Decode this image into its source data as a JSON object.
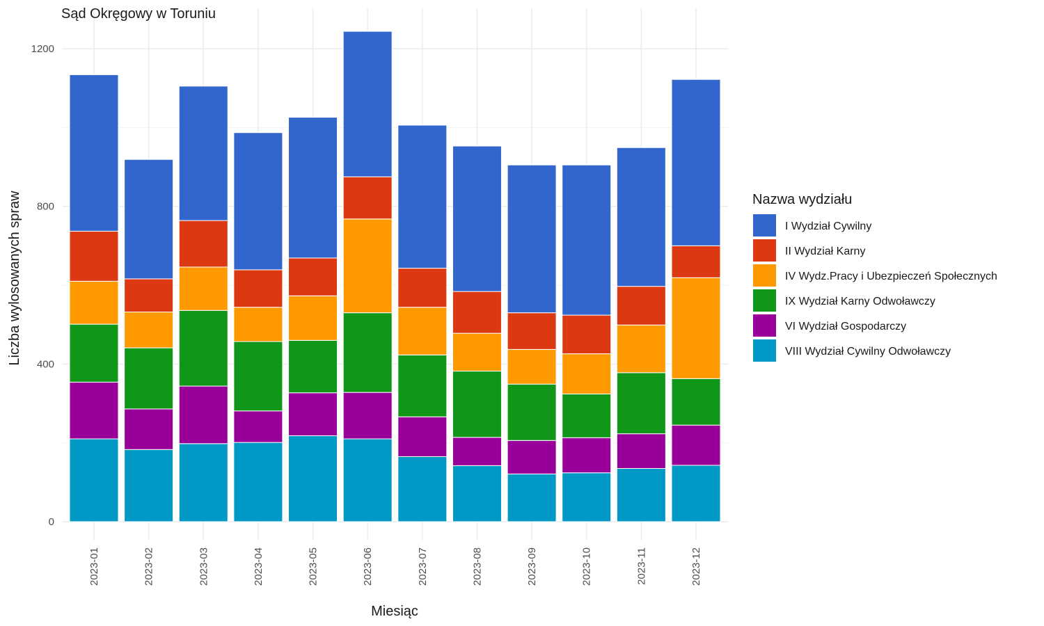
{
  "chart_data": {
    "type": "bar",
    "stacked": true,
    "title": "Sąd Okręgowy w Toruniu",
    "xlabel": "Miesiąc",
    "ylabel": "Liczba wylosowanych spraw",
    "ylim": [
      0,
      1260
    ],
    "yticks": [
      0,
      400,
      800,
      1200
    ],
    "grid": true,
    "legend_title": "Nazwa wydziału",
    "legend_position": "right",
    "categories": [
      "2023-01",
      "2023-02",
      "2023-03",
      "2023-04",
      "2023-05",
      "2023-06",
      "2023-07",
      "2023-08",
      "2023-09",
      "2023-10",
      "2023-11",
      "2023-12"
    ],
    "series": [
      {
        "name": "VIII Wydział Cywilny Odwoławczy",
        "color": "#0099c6",
        "values": [
          210,
          183,
          198,
          201,
          218,
          210,
          165,
          142,
          121,
          124,
          135,
          143
        ]
      },
      {
        "name": "VI Wydział Gospodarczy",
        "color": "#990099",
        "values": [
          144,
          103,
          146,
          80,
          109,
          118,
          101,
          72,
          85,
          89,
          88,
          102
        ]
      },
      {
        "name": "IX Wydział Karny Odwoławczy",
        "color": "#109618",
        "values": [
          147,
          155,
          192,
          176,
          133,
          202,
          157,
          168,
          143,
          111,
          155,
          118
        ]
      },
      {
        "name": "IV Wydz.Pracy i Ubezpieczeń Społecznych",
        "color": "#ff9900",
        "values": [
          109,
          91,
          110,
          87,
          113,
          238,
          121,
          96,
          88,
          102,
          121,
          256
        ]
      },
      {
        "name": "II Wydział Karny",
        "color": "#dc3912",
        "values": [
          127,
          84,
          118,
          95,
          96,
          107,
          99,
          106,
          93,
          98,
          98,
          81
        ]
      },
      {
        "name": "I Wydział Cywilny",
        "color": "#3366cc",
        "values": [
          397,
          303,
          341,
          348,
          357,
          369,
          363,
          369,
          375,
          381,
          352,
          422
        ]
      }
    ],
    "legend_order": [
      "I Wydział Cywilny",
      "II Wydział Karny",
      "IV Wydz.Pracy i Ubezpieczeń Społecznych",
      "IX Wydział Karny Odwoławczy",
      "VI Wydział Gospodarczy",
      "VIII Wydział Cywilny Odwoławczy"
    ]
  }
}
